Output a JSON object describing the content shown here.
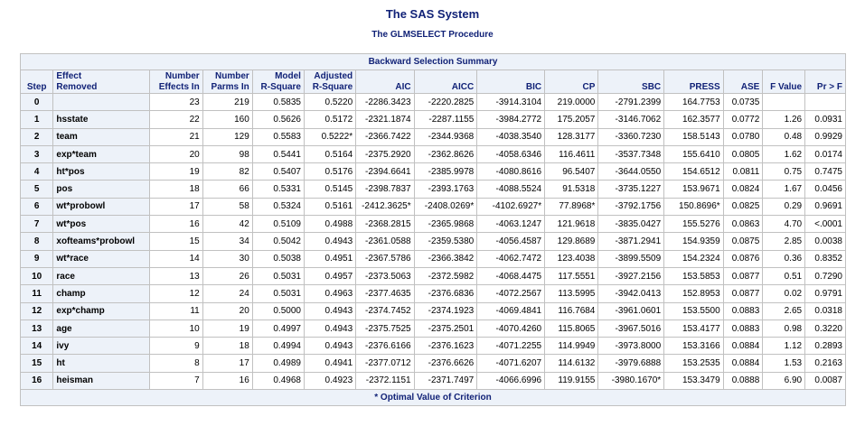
{
  "title": "The SAS System",
  "subtitle": "The GLMSELECT Procedure",
  "table": {
    "caption": "Backward Selection Summary",
    "headers": {
      "step": "Step",
      "effect_1": "Effect",
      "effect_2": "Removed",
      "nef_1": "Number",
      "nef_2": "Effects In",
      "npi_1": "Number",
      "npi_2": "Parms In",
      "mr_1": "Model",
      "mr_2": "R-Square",
      "ar_1": "Adjusted",
      "ar_2": "R-Square",
      "aic": "AIC",
      "aicc": "AICC",
      "bic": "BIC",
      "cp": "CP",
      "sbc": "SBC",
      "press": "PRESS",
      "ase": "ASE",
      "fval": "F Value",
      "prf": "Pr > F"
    },
    "rows": [
      [
        "0",
        "",
        "23",
        "219",
        "0.5835",
        "0.5220",
        "-2286.3423",
        "-2220.2825",
        "-3914.3104",
        "219.0000",
        "-2791.2399",
        "164.7753",
        "0.0735",
        "",
        ""
      ],
      [
        "1",
        "hsstate",
        "22",
        "160",
        "0.5626",
        "0.5172",
        "-2321.1874",
        "-2287.1155",
        "-3984.2772",
        "175.2057",
        "-3146.7062",
        "162.3577",
        "0.0772",
        "1.26",
        "0.0931"
      ],
      [
        "2",
        "team",
        "21",
        "129",
        "0.5583",
        "0.5222*",
        "-2366.7422",
        "-2344.9368",
        "-4038.3540",
        "128.3177",
        "-3360.7230",
        "158.5143",
        "0.0780",
        "0.48",
        "0.9929"
      ],
      [
        "3",
        "exp*team",
        "20",
        "98",
        "0.5441",
        "0.5164",
        "-2375.2920",
        "-2362.8626",
        "-4058.6346",
        "116.4611",
        "-3537.7348",
        "155.6410",
        "0.0805",
        "1.62",
        "0.0174"
      ],
      [
        "4",
        "ht*pos",
        "19",
        "82",
        "0.5407",
        "0.5176",
        "-2394.6641",
        "-2385.9978",
        "-4080.8616",
        "96.5407",
        "-3644.0550",
        "154.6512",
        "0.0811",
        "0.75",
        "0.7475"
      ],
      [
        "5",
        "pos",
        "18",
        "66",
        "0.5331",
        "0.5145",
        "-2398.7837",
        "-2393.1763",
        "-4088.5524",
        "91.5318",
        "-3735.1227",
        "153.9671",
        "0.0824",
        "1.67",
        "0.0456"
      ],
      [
        "6",
        "wt*probowl",
        "17",
        "58",
        "0.5324",
        "0.5161",
        "-2412.3625*",
        "-2408.0269*",
        "-4102.6927*",
        "77.8968*",
        "-3792.1756",
        "150.8696*",
        "0.0825",
        "0.29",
        "0.9691"
      ],
      [
        "7",
        "wt*pos",
        "16",
        "42",
        "0.5109",
        "0.4988",
        "-2368.2815",
        "-2365.9868",
        "-4063.1247",
        "121.9618",
        "-3835.0427",
        "155.5276",
        "0.0863",
        "4.70",
        "<.0001"
      ],
      [
        "8",
        "xofteams*probowl",
        "15",
        "34",
        "0.5042",
        "0.4943",
        "-2361.0588",
        "-2359.5380",
        "-4056.4587",
        "129.8689",
        "-3871.2941",
        "154.9359",
        "0.0875",
        "2.85",
        "0.0038"
      ],
      [
        "9",
        "wt*race",
        "14",
        "30",
        "0.5038",
        "0.4951",
        "-2367.5786",
        "-2366.3842",
        "-4062.7472",
        "123.4038",
        "-3899.5509",
        "154.2324",
        "0.0876",
        "0.36",
        "0.8352"
      ],
      [
        "10",
        "race",
        "13",
        "26",
        "0.5031",
        "0.4957",
        "-2373.5063",
        "-2372.5982",
        "-4068.4475",
        "117.5551",
        "-3927.2156",
        "153.5853",
        "0.0877",
        "0.51",
        "0.7290"
      ],
      [
        "11",
        "champ",
        "12",
        "24",
        "0.5031",
        "0.4963",
        "-2377.4635",
        "-2376.6836",
        "-4072.2567",
        "113.5995",
        "-3942.0413",
        "152.8953",
        "0.0877",
        "0.02",
        "0.9791"
      ],
      [
        "12",
        "exp*champ",
        "11",
        "20",
        "0.5000",
        "0.4943",
        "-2374.7452",
        "-2374.1923",
        "-4069.4841",
        "116.7684",
        "-3961.0601",
        "153.5500",
        "0.0883",
        "2.65",
        "0.0318"
      ],
      [
        "13",
        "age",
        "10",
        "19",
        "0.4997",
        "0.4943",
        "-2375.7525",
        "-2375.2501",
        "-4070.4260",
        "115.8065",
        "-3967.5016",
        "153.4177",
        "0.0883",
        "0.98",
        "0.3220"
      ],
      [
        "14",
        "ivy",
        "9",
        "18",
        "0.4994",
        "0.4943",
        "-2376.6166",
        "-2376.1623",
        "-4071.2255",
        "114.9949",
        "-3973.8000",
        "153.3166",
        "0.0884",
        "1.12",
        "0.2893"
      ],
      [
        "15",
        "ht",
        "8",
        "17",
        "0.4989",
        "0.4941",
        "-2377.0712",
        "-2376.6626",
        "-4071.6207",
        "114.6132",
        "-3979.6888",
        "153.2535",
        "0.0884",
        "1.53",
        "0.2163"
      ],
      [
        "16",
        "heisman",
        "7",
        "16",
        "0.4968",
        "0.4923",
        "-2372.1151",
        "-2371.7497",
        "-4066.6996",
        "119.9155",
        "-3980.1670*",
        "153.3479",
        "0.0888",
        "6.90",
        "0.0087"
      ]
    ],
    "footnote": "* Optimal Value of Criterion"
  },
  "colors": {
    "header_bg": "#edf2f9",
    "header_text": "#112277",
    "border": "#c1c1c1"
  }
}
